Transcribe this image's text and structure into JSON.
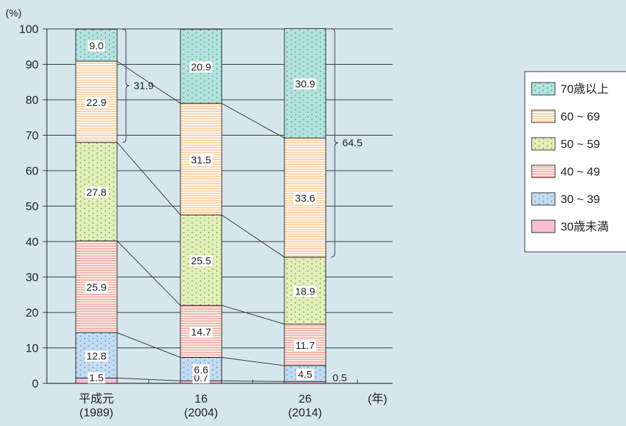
{
  "chart_data": {
    "type": "bar",
    "stacked": true,
    "y_unit_label": "(%)",
    "x_unit_label": "(年)",
    "ylim": [
      0,
      100
    ],
    "yticks": [
      0,
      10,
      20,
      30,
      40,
      50,
      60,
      70,
      80,
      90,
      100
    ],
    "grid": true,
    "legend_position": "right",
    "categories": [
      {
        "label": "平成元",
        "sub": "(1989)"
      },
      {
        "label": "16",
        "sub": "(2004)"
      },
      {
        "label": "26",
        "sub": "(2014)"
      }
    ],
    "series": [
      {
        "name": "30歳未満",
        "values": [
          1.5,
          0.7,
          0.5
        ],
        "value_labels": [
          "1.5",
          "0.7",
          "0.5"
        ],
        "color": "#f6bfd3",
        "pattern": "none"
      },
      {
        "name": "30 ~ 39",
        "values": [
          12.8,
          6.6,
          4.5
        ],
        "value_labels": [
          "12.8",
          "6.6",
          "4.5"
        ],
        "color": "#c3dbf1",
        "pattern": "dots",
        "pattern_color": "#7fa6cf"
      },
      {
        "name": "40 ~ 49",
        "values": [
          25.9,
          14.7,
          11.7
        ],
        "value_labels": [
          "25.9",
          "14.7",
          "11.7"
        ],
        "color": "#f7aea3",
        "pattern": "hlines",
        "pattern_color": "#ffffff"
      },
      {
        "name": "50 ~ 59",
        "values": [
          27.8,
          25.5,
          18.9
        ],
        "value_labels": [
          "27.8",
          "25.5",
          "18.9"
        ],
        "color": "#e3efba",
        "pattern": "dots",
        "pattern_color": "#94b35c"
      },
      {
        "name": "60 ~ 69",
        "values": [
          22.9,
          31.5,
          33.6
        ],
        "value_labels": [
          "22.9",
          "31.5",
          "33.6"
        ],
        "color": "#fdd3a8",
        "pattern": "hlines",
        "pattern_color": "#ffffff"
      },
      {
        "name": "70歳以上",
        "values": [
          9.0,
          20.9,
          30.9
        ],
        "value_labels": [
          "9.0",
          "20.9",
          "30.9"
        ],
        "color": "#b5e2dd",
        "pattern": "dots",
        "pattern_color": "#5cb3aa"
      }
    ],
    "legend_order": [
      "70歳以上",
      "60 ~ 69",
      "50 ~ 59",
      "40 ~ 49",
      "30 ~ 39",
      "30歳未満"
    ],
    "annotations": [
      {
        "bar": 0,
        "text": "31.9"
      },
      {
        "bar": 2,
        "text": "64.5"
      }
    ]
  }
}
